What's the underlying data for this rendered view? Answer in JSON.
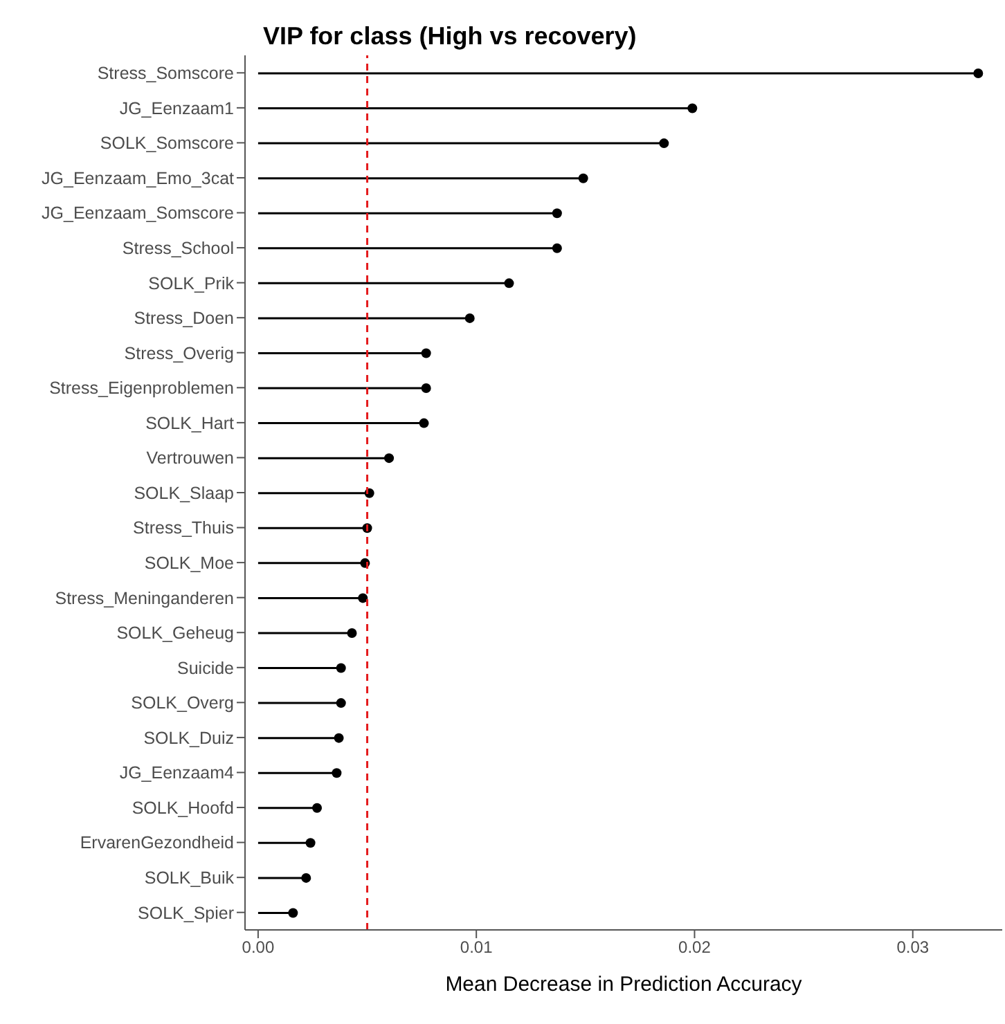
{
  "chart_data": {
    "type": "lollipop",
    "title": "VIP for class (High vs recovery)",
    "xlabel": "Mean Decrease in Prediction Accuracy",
    "orientation": "horizontal",
    "marker": "circle",
    "grid": false,
    "color": "#000000",
    "categories": [
      "Stress_Somscore",
      "JG_Eenzaam1",
      "SOLK_Somscore",
      "JG_Eenzaam_Emo_3cat",
      "JG_Eenzaam_Somscore",
      "Stress_School",
      "SOLK_Prik",
      "Stress_Doen",
      "Stress_Overig",
      "Stress_Eigenproblemen",
      "SOLK_Hart",
      "Vertrouwen",
      "SOLK_Slaap",
      "Stress_Thuis",
      "SOLK_Moe",
      "Stress_Meninganderen",
      "SOLK_Geheug",
      "Suicide",
      "SOLK_Overg",
      "SOLK_Duiz",
      "JG_Eenzaam4",
      "SOLK_Hoofd",
      "ErvarenGezondheid",
      "SOLK_Buik",
      "SOLK_Spier"
    ],
    "values": [
      0.033,
      0.0199,
      0.0186,
      0.0149,
      0.0137,
      0.0137,
      0.0115,
      0.0097,
      0.0077,
      0.0077,
      0.0076,
      0.006,
      0.0051,
      0.005,
      0.0049,
      0.0048,
      0.0043,
      0.0038,
      0.0038,
      0.0037,
      0.0036,
      0.0027,
      0.0024,
      0.0022,
      0.0016
    ],
    "xlim": [
      -0.0006,
      0.0341
    ],
    "xticks": [
      {
        "value": 0,
        "label": "0.00"
      },
      {
        "value": 0.01,
        "label": "0.01"
      },
      {
        "value": 0.02,
        "label": "0.02"
      },
      {
        "value": 0.03,
        "label": "0.03"
      }
    ],
    "ref_lines": [
      {
        "axis": "x",
        "value": 0.005,
        "color": "#e41a1c",
        "line_style": "dashed"
      }
    ]
  }
}
